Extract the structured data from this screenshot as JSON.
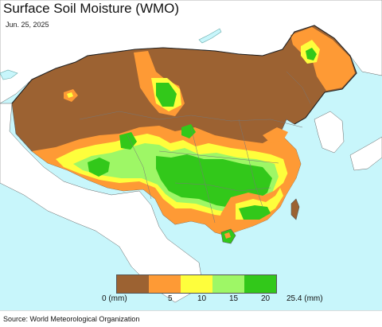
{
  "header": {
    "title": "Surface Soil Moisture (WMO)",
    "date": "Jun. 25, 2025"
  },
  "legend": {
    "unit_label": "(mm)",
    "ticks": [
      "0 (mm)",
      "5",
      "10",
      "15",
      "20",
      "25.4 (mm)"
    ],
    "colors": [
      "#9c6232",
      "#fe9a35",
      "#fefe3c",
      "#9ef766",
      "#32c81a"
    ]
  },
  "colors": {
    "ocean": "#c8f6fb",
    "outside_land": "#ffffff",
    "dry": "#9c6232",
    "orange": "#fe9a35",
    "yellow": "#fefe3c",
    "light_green": "#9ef766",
    "green": "#32c81a"
  },
  "footer": {
    "source": "Source: World Meteorological Organization"
  }
}
